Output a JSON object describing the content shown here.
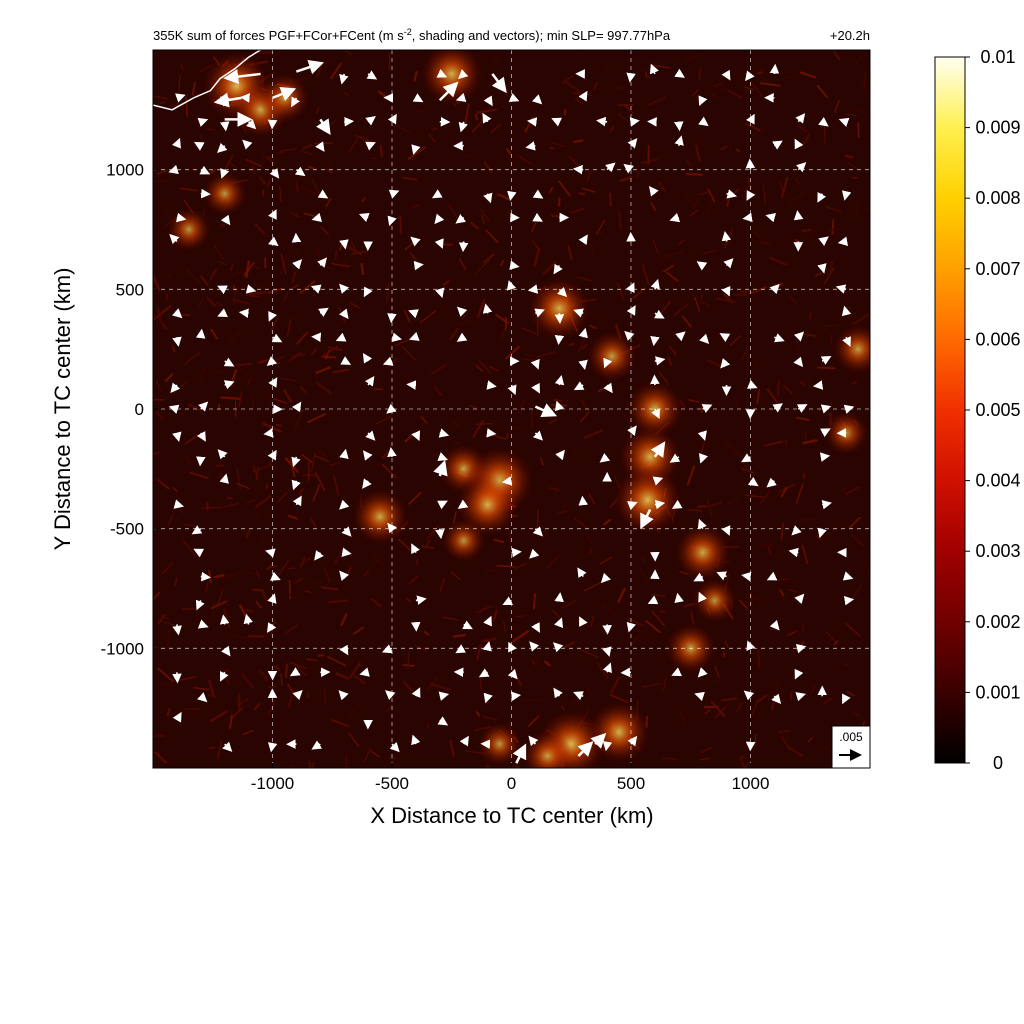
{
  "chart_data": {
    "type": "heatmap",
    "title_main": "355K sum of forces PGF+FCor+FCent (m s",
    "title_sup": "-2",
    "title_rest": ", shading and vectors); min SLP= 997.77hPa",
    "time_label": "+20.2h",
    "xlabel": "X Distance to TC center (km)",
    "ylabel": "Y Distance to TC center (km)",
    "xlim": [
      -1500,
      1500
    ],
    "ylim": [
      -1500,
      1500
    ],
    "xticks": [
      -1000,
      -500,
      0,
      500,
      1000
    ],
    "yticks": [
      -1000,
      -500,
      0,
      500,
      1000
    ],
    "xtick_labels": [
      "-1000",
      "-500",
      "0",
      "500",
      "1000"
    ],
    "ytick_labels": [
      "-1000",
      "-500",
      "0",
      "500",
      "1000"
    ],
    "grid": true,
    "colorbar": {
      "min": 0,
      "max": 0.01,
      "ticks": [
        0,
        0.001,
        0.002,
        0.003,
        0.004,
        0.005,
        0.006,
        0.007,
        0.008,
        0.009,
        0.01
      ],
      "tick_labels": [
        "0",
        "0.001",
        "0.002",
        "0.003",
        "0.004",
        "0.005",
        "0.006",
        "0.007",
        "0.008",
        "0.009",
        "0.01"
      ],
      "colors": [
        "#000000",
        "#3a0000",
        "#700000",
        "#a00000",
        "#d01000",
        "#f03000",
        "#ff6a00",
        "#ffa000",
        "#ffd000",
        "#fff050",
        "#fffff0"
      ]
    },
    "reference_vector": {
      "label": ".005",
      "magnitude": 0.005
    },
    "hotspots": [
      {
        "x": -1150,
        "y": 1350,
        "v": 0.008
      },
      {
        "x": -1050,
        "y": 1250,
        "v": 0.006
      },
      {
        "x": -950,
        "y": 1300,
        "v": 0.005
      },
      {
        "x": -250,
        "y": 1400,
        "v": 0.007
      },
      {
        "x": -1350,
        "y": 750,
        "v": 0.004
      },
      {
        "x": -1200,
        "y": 900,
        "v": 0.004
      },
      {
        "x": 200,
        "y": 420,
        "v": 0.007
      },
      {
        "x": -200,
        "y": -250,
        "v": 0.005
      },
      {
        "x": -50,
        "y": -300,
        "v": 0.008
      },
      {
        "x": -100,
        "y": -400,
        "v": 0.007
      },
      {
        "x": -550,
        "y": -450,
        "v": 0.006
      },
      {
        "x": -200,
        "y": -550,
        "v": 0.004
      },
      {
        "x": 600,
        "y": 0,
        "v": 0.006
      },
      {
        "x": 580,
        "y": -200,
        "v": 0.007
      },
      {
        "x": 570,
        "y": -380,
        "v": 0.008
      },
      {
        "x": 420,
        "y": 220,
        "v": 0.005
      },
      {
        "x": 1400,
        "y": -100,
        "v": 0.004
      },
      {
        "x": 1450,
        "y": 250,
        "v": 0.005
      },
      {
        "x": 800,
        "y": -600,
        "v": 0.006
      },
      {
        "x": 850,
        "y": -800,
        "v": 0.004
      },
      {
        "x": 750,
        "y": -1000,
        "v": 0.005
      },
      {
        "x": 250,
        "y": -1400,
        "v": 0.008
      },
      {
        "x": 450,
        "y": -1350,
        "v": 0.007
      },
      {
        "x": 150,
        "y": -1450,
        "v": 0.005
      },
      {
        "x": -50,
        "y": -1400,
        "v": 0.004
      }
    ],
    "vectors": [
      {
        "x": -1050,
        "y": 1400,
        "u": -0.0085,
        "v": -0.001
      },
      {
        "x": -900,
        "y": 1410,
        "u": 0.006,
        "v": 0.002
      },
      {
        "x": -1130,
        "y": 1300,
        "u": -0.006,
        "v": -0.001
      },
      {
        "x": -1200,
        "y": 1210,
        "u": 0.006,
        "v": 0.0
      },
      {
        "x": -1000,
        "y": 1300,
        "u": 0.005,
        "v": 0.002
      },
      {
        "x": -800,
        "y": 1210,
        "u": 0.002,
        "v": -0.003
      },
      {
        "x": -300,
        "y": 1290,
        "u": 0.004,
        "v": 0.004
      },
      {
        "x": -80,
        "y": 1400,
        "u": 0.003,
        "v": -0.004
      },
      {
        "x": 100,
        "y": 10,
        "u": 0.0045,
        "v": -0.002
      },
      {
        "x": 600,
        "y": -200,
        "u": 0.002,
        "v": 0.003
      },
      {
        "x": 580,
        "y": -420,
        "u": -0.002,
        "v": -0.004
      },
      {
        "x": -300,
        "y": -280,
        "u": 0.001,
        "v": 0.003
      },
      {
        "x": 20,
        "y": -1480,
        "u": 0.002,
        "v": 0.004
      },
      {
        "x": 280,
        "y": -1450,
        "u": 0.003,
        "v": 0.003
      },
      {
        "x": 350,
        "y": -1400,
        "u": 0.002,
        "v": 0.002
      }
    ],
    "coastline": [
      [
        -1500,
        1270
      ],
      [
        -1420,
        1250
      ],
      [
        -1330,
        1300
      ],
      [
        -1260,
        1330
      ],
      [
        -1220,
        1380
      ],
      [
        -1160,
        1420
      ],
      [
        -1100,
        1470
      ],
      [
        -1050,
        1500
      ]
    ]
  }
}
